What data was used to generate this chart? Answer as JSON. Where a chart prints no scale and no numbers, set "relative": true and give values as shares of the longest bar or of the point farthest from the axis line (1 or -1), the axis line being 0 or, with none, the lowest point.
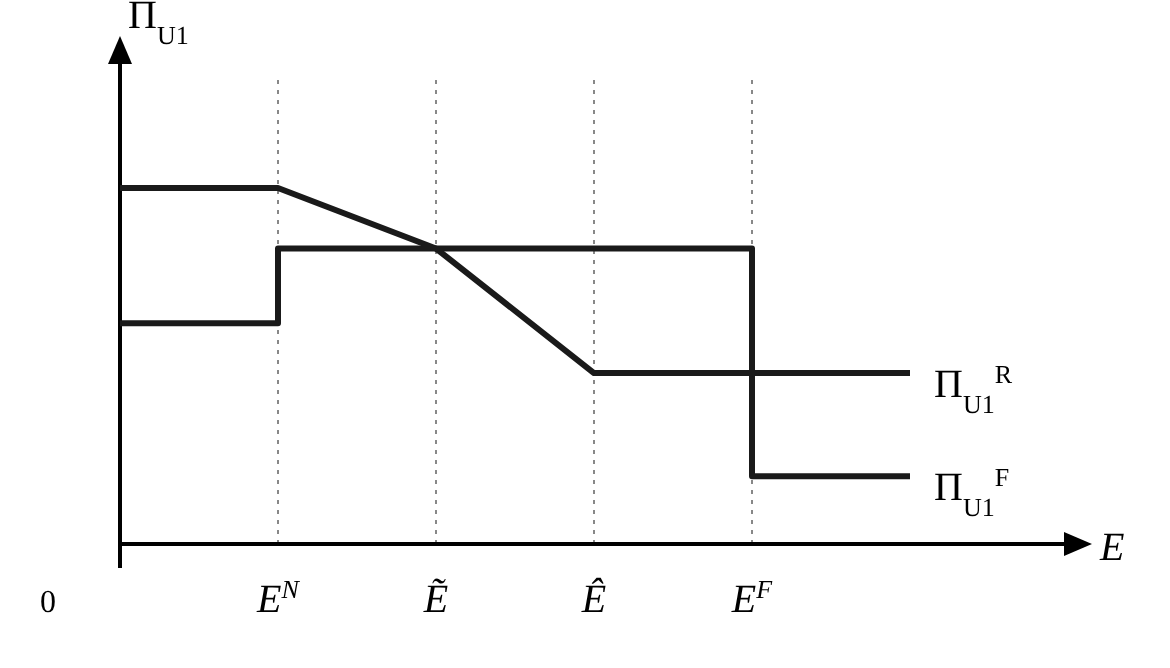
{
  "chart_data": {
    "type": "line",
    "relative": true,
    "xlabel": "E",
    "ylabel": "Π$_{U1}$",
    "categories": [
      null,
      "E$^{N}$",
      "Ẽ",
      "Ê",
      "E$^{F}$",
      null
    ],
    "series": [
      {
        "name": "Π$_{U1}$$^{R}$",
        "color": "#1a1a1a",
        "values": [
          1,
          1,
          0.83,
          0.48,
          0.48,
          0.48
        ]
      },
      {
        "name": "Π$_{U1}$$^{F}$",
        "type": "step",
        "color": "#1a1a1a",
        "values": [
          0.62,
          0.83,
          0.83,
          0.83,
          0.19,
          0.19
        ]
      }
    ],
    "ref_lines": [
      {
        "axis": "x",
        "value": "E$^{N}$",
        "line_style": "dotted",
        "color": "#888888"
      },
      {
        "axis": "x",
        "value": "Ẽ",
        "line_style": "dotted",
        "color": "#888888"
      },
      {
        "axis": "x",
        "value": "Ê",
        "line_style": "dotted",
        "color": "#888888"
      },
      {
        "axis": "x",
        "value": "E$^{F}$",
        "line_style": "dotted",
        "color": "#888888"
      }
    ],
    "annotations": [
      "0"
    ],
    "legend": false,
    "marker": "none",
    "line_style": "solid"
  }
}
